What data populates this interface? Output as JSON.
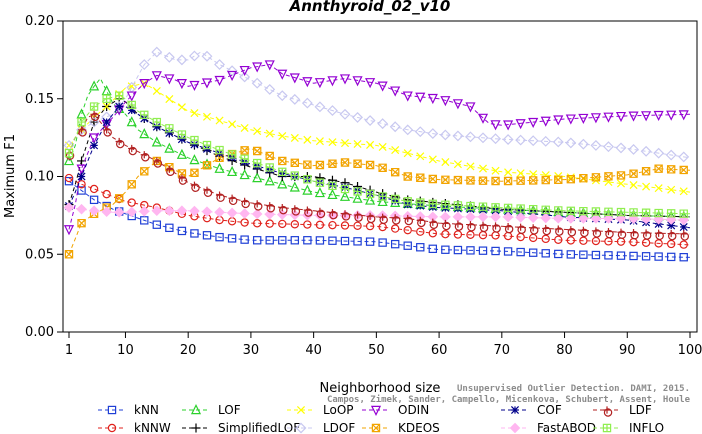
{
  "chart_data": {
    "type": "line",
    "title": "Annthyroid_02_v10",
    "xlabel": "Neighborhood size",
    "ylabel": "Maximum F1",
    "xlim": [
      1,
      100
    ],
    "ylim": [
      0,
      0.2
    ],
    "xticks": [
      "1",
      "10",
      "20",
      "30",
      "40",
      "50",
      "60",
      "70",
      "80",
      "90",
      "100"
    ],
    "yticks": [
      "0.00",
      "0.05",
      "0.10",
      "0.15",
      "0.20"
    ],
    "grid": false,
    "legend_position": "bottom",
    "watermark": [
      "Unsupervised Outlier Detection. DAMI, 2015.",
      "Campos, Zimek, Sander, Campello, Micenkova, Schubert, Assent, Houle"
    ],
    "series": [
      {
        "name": "kNN",
        "color": "#1f3fd6",
        "marker": "square",
        "dash": "4,3",
        "points": [
          [
            1,
            0.097
          ],
          [
            3,
            0.091
          ],
          [
            5,
            0.085
          ],
          [
            8,
            0.079
          ],
          [
            10,
            0.076
          ],
          [
            15,
            0.069
          ],
          [
            20,
            0.064
          ],
          [
            25,
            0.061
          ],
          [
            30,
            0.059
          ],
          [
            40,
            0.059
          ],
          [
            50,
            0.058
          ],
          [
            60,
            0.053
          ],
          [
            70,
            0.052
          ],
          [
            80,
            0.05
          ],
          [
            90,
            0.049
          ],
          [
            100,
            0.048
          ]
        ]
      },
      {
        "name": "kNNW",
        "color": "#e0221c",
        "marker": "circle",
        "dash": "4,3",
        "points": [
          [
            1,
            0.099
          ],
          [
            3,
            0.095
          ],
          [
            5,
            0.092
          ],
          [
            8,
            0.087
          ],
          [
            10,
            0.084
          ],
          [
            15,
            0.08
          ],
          [
            20,
            0.075
          ],
          [
            25,
            0.072
          ],
          [
            30,
            0.07
          ],
          [
            40,
            0.069
          ],
          [
            50,
            0.068
          ],
          [
            60,
            0.063
          ],
          [
            70,
            0.062
          ],
          [
            80,
            0.059
          ],
          [
            90,
            0.058
          ],
          [
            100,
            0.056
          ]
        ]
      },
      {
        "name": "LOF",
        "color": "#2bd12b",
        "marker": "triangle-up",
        "dash": "4,3",
        "points": [
          [
            1,
            0.11
          ],
          [
            2,
            0.12
          ],
          [
            3,
            0.14
          ],
          [
            4,
            0.152
          ],
          [
            5,
            0.158
          ],
          [
            6,
            0.163
          ],
          [
            7,
            0.155
          ],
          [
            8,
            0.147
          ],
          [
            10,
            0.14
          ],
          [
            12,
            0.13
          ],
          [
            15,
            0.122
          ],
          [
            20,
            0.112
          ],
          [
            25,
            0.105
          ],
          [
            30,
            0.1
          ],
          [
            35,
            0.095
          ],
          [
            40,
            0.09
          ],
          [
            45,
            0.087
          ],
          [
            50,
            0.084
          ],
          [
            60,
            0.081
          ],
          [
            70,
            0.079
          ],
          [
            80,
            0.077
          ],
          [
            90,
            0.075
          ],
          [
            100,
            0.074
          ]
        ]
      },
      {
        "name": "SimplifiedLOF",
        "color": "#000000",
        "marker": "plus",
        "dash": "4,3",
        "points": [
          [
            1,
            0.082
          ],
          [
            2,
            0.095
          ],
          [
            3,
            0.11
          ],
          [
            5,
            0.135
          ],
          [
            7,
            0.145
          ],
          [
            9,
            0.15
          ],
          [
            10,
            0.148
          ],
          [
            12,
            0.14
          ],
          [
            15,
            0.132
          ],
          [
            20,
            0.122
          ],
          [
            25,
            0.113
          ],
          [
            30,
            0.106
          ],
          [
            35,
            0.1
          ],
          [
            40,
            0.1
          ],
          [
            45,
            0.096
          ],
          [
            50,
            0.09
          ],
          [
            55,
            0.085
          ],
          [
            60,
            0.083
          ],
          [
            70,
            0.079
          ],
          [
            80,
            0.077
          ],
          [
            90,
            0.075
          ],
          [
            100,
            0.074
          ]
        ]
      },
      {
        "name": "LoOP",
        "color": "#ffff00",
        "marker": "x",
        "dash": "4,3",
        "points": [
          [
            1,
            0.12
          ],
          [
            3,
            0.13
          ],
          [
            5,
            0.138
          ],
          [
            7,
            0.145
          ],
          [
            10,
            0.157
          ],
          [
            13,
            0.16
          ],
          [
            15,
            0.155
          ],
          [
            20,
            0.142
          ],
          [
            25,
            0.136
          ],
          [
            30,
            0.13
          ],
          [
            35,
            0.126
          ],
          [
            40,
            0.123
          ],
          [
            50,
            0.12
          ],
          [
            55,
            0.115
          ],
          [
            60,
            0.11
          ],
          [
            70,
            0.103
          ],
          [
            80,
            0.1
          ],
          [
            90,
            0.095
          ],
          [
            100,
            0.09
          ]
        ]
      },
      {
        "name": "LDOF",
        "color": "#c8c8f0",
        "marker": "diamond",
        "dash": "4,3",
        "points": [
          [
            1,
            0.12
          ],
          [
            3,
            0.13
          ],
          [
            5,
            0.135
          ],
          [
            8,
            0.14
          ],
          [
            10,
            0.15
          ],
          [
            13,
            0.172
          ],
          [
            15,
            0.18
          ],
          [
            18,
            0.175
          ],
          [
            20,
            0.175
          ],
          [
            22,
            0.18
          ],
          [
            25,
            0.172
          ],
          [
            30,
            0.162
          ],
          [
            35,
            0.152
          ],
          [
            40,
            0.146
          ],
          [
            45,
            0.14
          ],
          [
            50,
            0.135
          ],
          [
            55,
            0.13
          ],
          [
            60,
            0.127
          ],
          [
            70,
            0.124
          ],
          [
            80,
            0.122
          ],
          [
            90,
            0.118
          ],
          [
            100,
            0.112
          ]
        ]
      },
      {
        "name": "ODIN",
        "color": "#9400d3",
        "marker": "triangle-down",
        "dash": "4,3",
        "points": [
          [
            1,
            0.066
          ],
          [
            2,
            0.082
          ],
          [
            3,
            0.105
          ],
          [
            5,
            0.125
          ],
          [
            8,
            0.138
          ],
          [
            10,
            0.148
          ],
          [
            13,
            0.16
          ],
          [
            15,
            0.165
          ],
          [
            18,
            0.162
          ],
          [
            20,
            0.158
          ],
          [
            25,
            0.162
          ],
          [
            30,
            0.17
          ],
          [
            33,
            0.172
          ],
          [
            35,
            0.166
          ],
          [
            40,
            0.16
          ],
          [
            45,
            0.163
          ],
          [
            50,
            0.16
          ],
          [
            55,
            0.152
          ],
          [
            60,
            0.15
          ],
          [
            65,
            0.145
          ],
          [
            68,
            0.134
          ],
          [
            70,
            0.133
          ],
          [
            80,
            0.137
          ],
          [
            90,
            0.139
          ],
          [
            100,
            0.14
          ]
        ]
      },
      {
        "name": "KDEOS",
        "color": "#f2a400",
        "marker": "square-x",
        "dash": "4,3",
        "points": [
          [
            1,
            0.05
          ],
          [
            2,
            0.06
          ],
          [
            3,
            0.07
          ],
          [
            5,
            0.076
          ],
          [
            8,
            0.082
          ],
          [
            10,
            0.09
          ],
          [
            12,
            0.1
          ],
          [
            15,
            0.11
          ],
          [
            18,
            0.104
          ],
          [
            20,
            0.1
          ],
          [
            25,
            0.112
          ],
          [
            30,
            0.118
          ],
          [
            35,
            0.11
          ],
          [
            40,
            0.107
          ],
          [
            45,
            0.109
          ],
          [
            50,
            0.107
          ],
          [
            55,
            0.1
          ],
          [
            60,
            0.098
          ],
          [
            70,
            0.097
          ],
          [
            80,
            0.098
          ],
          [
            90,
            0.101
          ],
          [
            95,
            0.105
          ],
          [
            100,
            0.104
          ]
        ]
      },
      {
        "name": "COF",
        "color": "#00008b",
        "marker": "asterisk",
        "dash": "4,3",
        "points": [
          [
            1,
            0.081
          ],
          [
            2,
            0.09
          ],
          [
            3,
            0.1
          ],
          [
            5,
            0.12
          ],
          [
            7,
            0.135
          ],
          [
            9,
            0.145
          ],
          [
            10,
            0.145
          ],
          [
            12,
            0.14
          ],
          [
            15,
            0.132
          ],
          [
            20,
            0.122
          ],
          [
            25,
            0.115
          ],
          [
            30,
            0.108
          ],
          [
            35,
            0.102
          ],
          [
            40,
            0.097
          ],
          [
            45,
            0.093
          ],
          [
            50,
            0.088
          ],
          [
            55,
            0.082
          ],
          [
            60,
            0.08
          ],
          [
            70,
            0.078
          ],
          [
            80,
            0.074
          ],
          [
            90,
            0.072
          ],
          [
            100,
            0.067
          ]
        ]
      },
      {
        "name": "FastABOD",
        "color": "#ffb6f0",
        "marker": "diamond-filled",
        "dash": "4,3",
        "points": [
          [
            1,
            0.08
          ],
          [
            3,
            0.079
          ],
          [
            5,
            0.078
          ],
          [
            8,
            0.077
          ],
          [
            10,
            0.077
          ],
          [
            15,
            0.078
          ],
          [
            20,
            0.078
          ],
          [
            25,
            0.077
          ],
          [
            30,
            0.076
          ],
          [
            40,
            0.075
          ],
          [
            50,
            0.075
          ],
          [
            60,
            0.074
          ],
          [
            70,
            0.074
          ],
          [
            80,
            0.073
          ],
          [
            90,
            0.073
          ],
          [
            100,
            0.072
          ]
        ]
      },
      {
        "name": "LDF",
        "color": "#b22222",
        "marker": "circle-plus",
        "dash": "4,3",
        "points": [
          [
            1,
            0.115
          ],
          [
            2,
            0.125
          ],
          [
            3,
            0.13
          ],
          [
            4,
            0.138
          ],
          [
            5,
            0.14
          ],
          [
            6,
            0.135
          ],
          [
            8,
            0.125
          ],
          [
            10,
            0.12
          ],
          [
            12,
            0.116
          ],
          [
            15,
            0.11
          ],
          [
            18,
            0.102
          ],
          [
            20,
            0.096
          ],
          [
            25,
            0.088
          ],
          [
            30,
            0.083
          ],
          [
            35,
            0.08
          ],
          [
            40,
            0.078
          ],
          [
            45,
            0.076
          ],
          [
            50,
            0.074
          ],
          [
            55,
            0.073
          ],
          [
            60,
            0.07
          ],
          [
            70,
            0.068
          ],
          [
            80,
            0.066
          ],
          [
            90,
            0.064
          ],
          [
            100,
            0.063
          ]
        ]
      },
      {
        "name": "INFLO",
        "color": "#90ee50",
        "marker": "square-cross",
        "dash": "4,3",
        "points": [
          [
            1,
            0.115
          ],
          [
            2,
            0.125
          ],
          [
            3,
            0.135
          ],
          [
            5,
            0.145
          ],
          [
            7,
            0.15
          ],
          [
            9,
            0.152
          ],
          [
            10,
            0.15
          ],
          [
            12,
            0.142
          ],
          [
            15,
            0.135
          ],
          [
            20,
            0.125
          ],
          [
            25,
            0.117
          ],
          [
            30,
            0.11
          ],
          [
            35,
            0.103
          ],
          [
            40,
            0.097
          ],
          [
            45,
            0.092
          ],
          [
            50,
            0.088
          ],
          [
            55,
            0.084
          ],
          [
            60,
            0.082
          ],
          [
            70,
            0.08
          ],
          [
            80,
            0.078
          ],
          [
            90,
            0.077
          ],
          [
            100,
            0.076
          ]
        ]
      }
    ]
  }
}
